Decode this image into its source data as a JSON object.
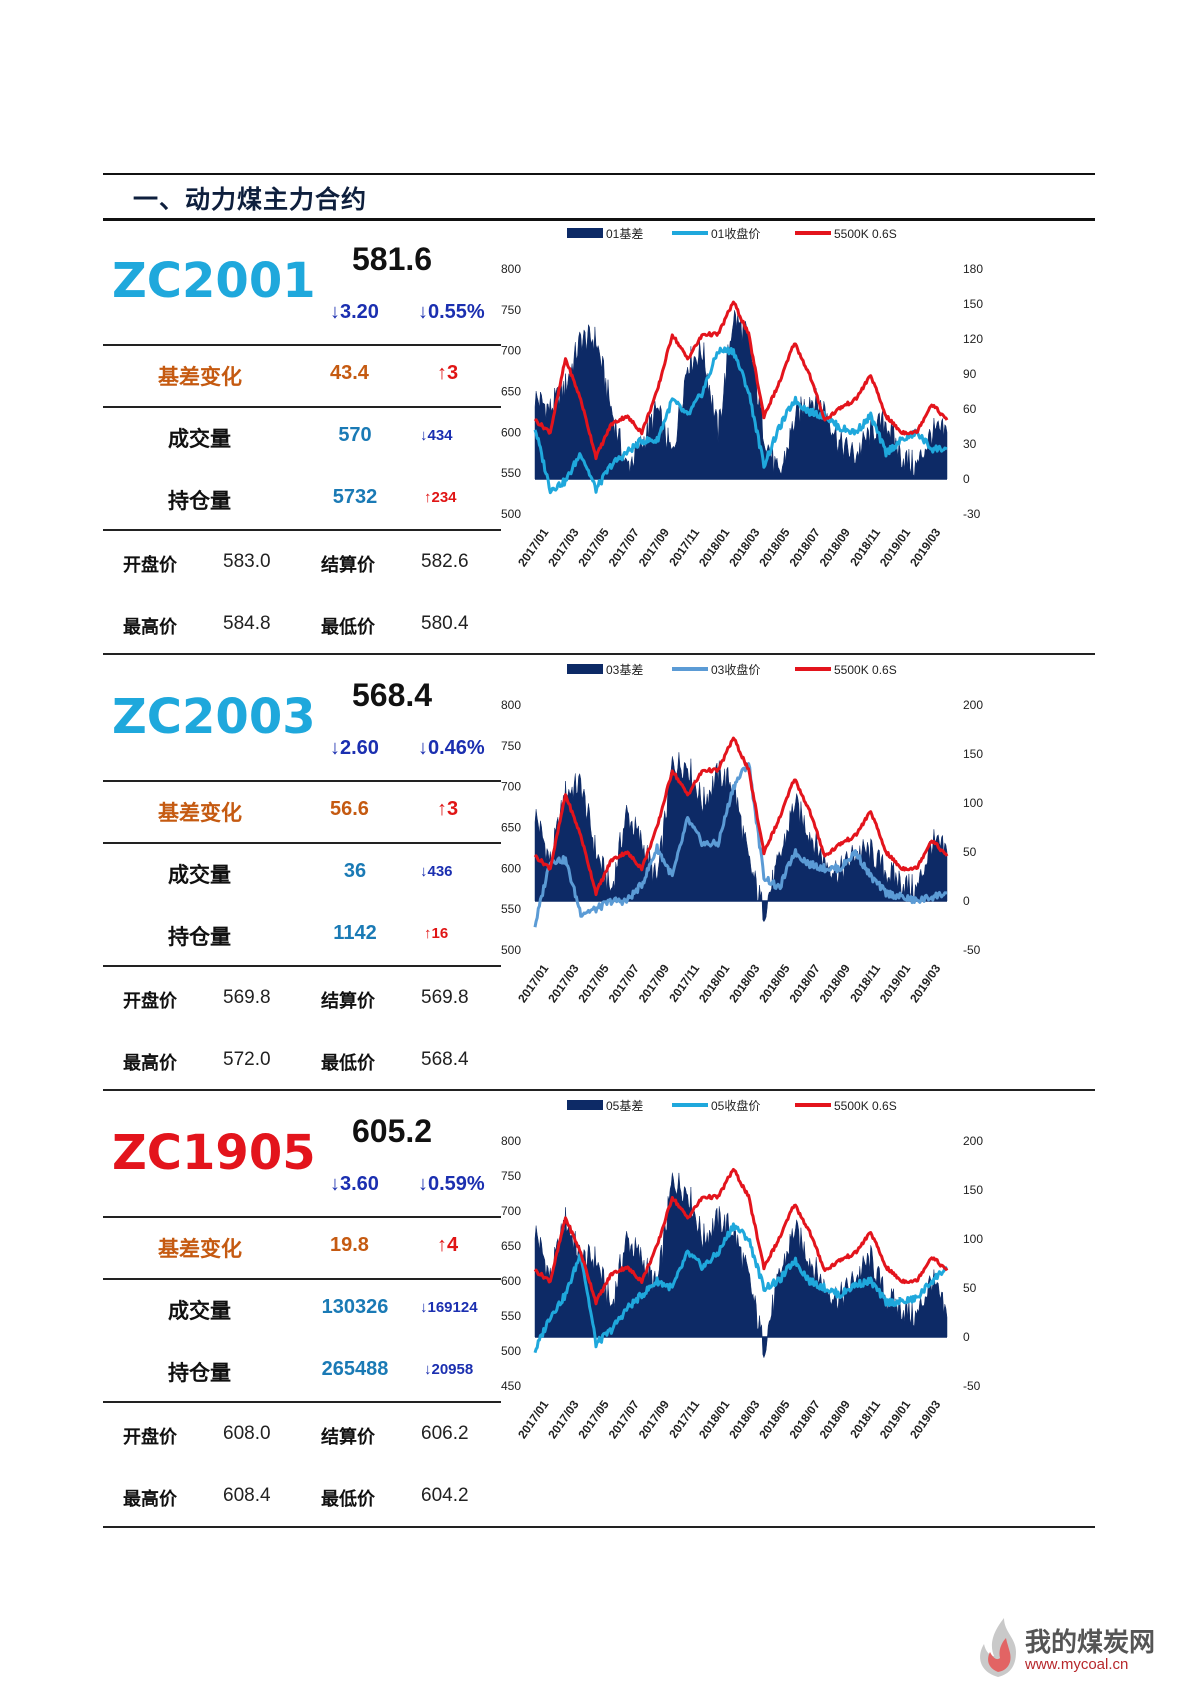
{
  "section_title": "一、动力煤主力合约",
  "colors": {
    "dark_navy": "#0d2a66",
    "light_blue": "#1fa8dc",
    "mid_blue": "#5b9bd5",
    "red": "#e3141c",
    "orange": "#c55a11",
    "code_blue": "#1fa8dc",
    "code_red": "#e3141c"
  },
  "watermark": {
    "name": "我的煤炭网",
    "url": "www.mycoal.cn",
    "icon": "flame-logo-icon"
  },
  "contracts": [
    {
      "code": "ZC2001",
      "code_color": "#1fa8dc",
      "price": "581.6",
      "change": "↓3.20",
      "change_pct": "↓0.55%",
      "basis_label": "基差变化",
      "basis_value": "43.4",
      "basis_change": "↑3",
      "volume_label": "成交量",
      "volume": "570",
      "volume_change": "↓434",
      "oi_label": "持仓量",
      "oi": "5732",
      "oi_change": "↑234",
      "open_label": "开盘价",
      "open": "583.0",
      "settle_label": "结算价",
      "settle": "582.6",
      "high_label": "最高价",
      "high": "584.8",
      "low_label": "最低价",
      "low": "580.4"
    },
    {
      "code": "ZC2003",
      "code_color": "#1fa8dc",
      "price": "568.4",
      "change": "↓2.60",
      "change_pct": "↓0.46%",
      "basis_label": "基差变化",
      "basis_value": "56.6",
      "basis_change": "↑3",
      "volume_label": "成交量",
      "volume": "36",
      "volume_change": "↓436",
      "oi_label": "持仓量",
      "oi": "1142",
      "oi_change": "↑16",
      "open_label": "开盘价",
      "open": "569.8",
      "settle_label": "结算价",
      "settle": "569.8",
      "high_label": "最高价",
      "high": "572.0",
      "low_label": "最低价",
      "low": "568.4"
    },
    {
      "code": "ZC1905",
      "code_color": "#e3141c",
      "price": "605.2",
      "change": "↓3.60",
      "change_pct": "↓0.59%",
      "basis_label": "基差变化",
      "basis_value": "19.8",
      "basis_change": "↑4",
      "volume_label": "成交量",
      "volume": "130326",
      "volume_change": "↓169124",
      "oi_label": "持仓量",
      "oi": "265488",
      "oi_change": "↓20958",
      "open_label": "开盘价",
      "open": "608.0",
      "settle_label": "结算价",
      "settle": "606.2",
      "high_label": "最高价",
      "high": "608.4",
      "low_label": "最低价",
      "low": "604.2"
    }
  ],
  "chart_data": [
    {
      "type": "line",
      "series": [
        {
          "name": "01基差",
          "kind": "area",
          "axis": "right",
          "color": "#0d2a66",
          "x": [
            "2017/01",
            "2017/02",
            "2017/03",
            "2017/04",
            "2017/05",
            "2017/06",
            "2017/07",
            "2017/08",
            "2017/09",
            "2017/10",
            "2017/11",
            "2017/12",
            "2018/01",
            "2018/02",
            "2018/03",
            "2018/04",
            "2018/05",
            "2018/06",
            "2018/07",
            "2018/08",
            "2018/09",
            "2018/10",
            "2018/11",
            "2018/12",
            "2019/01",
            "2019/02",
            "2019/03",
            "2019/04"
          ],
          "values": [
            70,
            60,
            80,
            120,
            120,
            60,
            10,
            30,
            60,
            20,
            100,
            110,
            40,
            140,
            120,
            40,
            0,
            50,
            70,
            60,
            30,
            20,
            40,
            50,
            20,
            10,
            40,
            40
          ]
        },
        {
          "name": "01收盘价",
          "kind": "line",
          "axis": "left",
          "color": "#1fa8dc",
          "x": [
            "2017/01",
            "2017/02",
            "2017/03",
            "2017/04",
            "2017/05",
            "2017/06",
            "2017/07",
            "2017/08",
            "2017/09",
            "2017/10",
            "2017/11",
            "2017/12",
            "2018/01",
            "2018/02",
            "2018/03",
            "2018/04",
            "2018/05",
            "2018/06",
            "2018/07",
            "2018/08",
            "2018/09",
            "2018/10",
            "2018/11",
            "2018/12",
            "2019/01",
            "2019/02",
            "2019/03",
            "2019/04"
          ],
          "values": [
            605,
            530,
            540,
            575,
            530,
            560,
            575,
            590,
            590,
            640,
            620,
            650,
            700,
            700,
            650,
            560,
            605,
            640,
            625,
            620,
            605,
            600,
            620,
            575,
            590,
            600,
            580,
            580
          ]
        },
        {
          "name": "5500K 0.6S",
          "kind": "line",
          "axis": "left",
          "color": "#e3141c",
          "x": [
            "2017/01",
            "2017/02",
            "2017/03",
            "2017/04",
            "2017/05",
            "2017/06",
            "2017/07",
            "2017/08",
            "2017/09",
            "2017/10",
            "2017/11",
            "2017/12",
            "2018/01",
            "2018/02",
            "2018/03",
            "2018/04",
            "2018/05",
            "2018/06",
            "2018/07",
            "2018/08",
            "2018/09",
            "2018/10",
            "2018/11",
            "2018/12",
            "2019/01",
            "2019/02",
            "2019/03",
            "2019/04"
          ],
          "values": [
            615,
            600,
            690,
            640,
            570,
            610,
            620,
            600,
            650,
            720,
            690,
            720,
            720,
            760,
            720,
            620,
            660,
            710,
            670,
            615,
            630,
            640,
            670,
            620,
            600,
            600,
            635,
            615
          ]
        }
      ],
      "ylim_left": [
        500,
        800
      ],
      "yticks_left": [
        500,
        550,
        600,
        650,
        700,
        750,
        800
      ],
      "ylim_right": [
        -30,
        180
      ],
      "yticks_right": [
        -30,
        0,
        30,
        60,
        90,
        120,
        150,
        180
      ],
      "xticks": [
        "2017/01",
        "2017/03",
        "2017/05",
        "2017/07",
        "2017/09",
        "2017/11",
        "2018/01",
        "2018/03",
        "2018/05",
        "2018/07",
        "2018/09",
        "2018/11",
        "2019/01",
        "2019/03"
      ],
      "legend": "top"
    },
    {
      "type": "line",
      "series": [
        {
          "name": "03基差",
          "kind": "area",
          "axis": "right",
          "color": "#0d2a66",
          "x": [
            "2017/01",
            "2017/02",
            "2017/03",
            "2017/04",
            "2017/05",
            "2017/06",
            "2017/07",
            "2017/08",
            "2017/09",
            "2017/10",
            "2017/11",
            "2017/12",
            "2018/01",
            "2018/02",
            "2018/03",
            "2018/04",
            "2018/05",
            "2018/06",
            "2018/07",
            "2018/08",
            "2018/09",
            "2018/10",
            "2018/11",
            "2018/12",
            "2019/01",
            "2019/02",
            "2019/03",
            "2019/04"
          ],
          "values": [
            90,
            40,
            110,
            120,
            50,
            10,
            90,
            60,
            20,
            140,
            140,
            100,
            130,
            120,
            40,
            -10,
            40,
            100,
            70,
            40,
            30,
            50,
            50,
            30,
            20,
            10,
            60,
            50
          ]
        },
        {
          "name": "03收盘价",
          "kind": "line",
          "axis": "left",
          "color": "#5b9bd5",
          "x": [
            "2017/01",
            "2017/02",
            "2017/03",
            "2017/04",
            "2017/05",
            "2017/06",
            "2017/07",
            "2017/08",
            "2017/09",
            "2017/10",
            "2017/11",
            "2017/12",
            "2018/01",
            "2018/02",
            "2018/03",
            "2018/04",
            "2018/05",
            "2018/06",
            "2018/07",
            "2018/08",
            "2018/09",
            "2018/10",
            "2018/11",
            "2018/12",
            "2019/01",
            "2019/02",
            "2019/03",
            "2019/04"
          ],
          "values": [
            530,
            610,
            610,
            545,
            550,
            560,
            560,
            580,
            625,
            590,
            660,
            630,
            630,
            700,
            730,
            590,
            575,
            620,
            605,
            600,
            600,
            620,
            590,
            570,
            565,
            560,
            565,
            570
          ]
        },
        {
          "name": "5500K 0.6S",
          "kind": "line",
          "axis": "left",
          "color": "#e3141c",
          "x": [
            "2017/01",
            "2017/02",
            "2017/03",
            "2017/04",
            "2017/05",
            "2017/06",
            "2017/07",
            "2017/08",
            "2017/09",
            "2017/10",
            "2017/11",
            "2017/12",
            "2018/01",
            "2018/02",
            "2018/03",
            "2018/04",
            "2018/05",
            "2018/06",
            "2018/07",
            "2018/08",
            "2018/09",
            "2018/10",
            "2018/11",
            "2018/12",
            "2019/01",
            "2019/02",
            "2019/03",
            "2019/04"
          ],
          "values": [
            615,
            600,
            690,
            640,
            570,
            610,
            620,
            600,
            650,
            720,
            690,
            720,
            720,
            760,
            720,
            620,
            660,
            710,
            670,
            615,
            630,
            640,
            670,
            620,
            600,
            600,
            635,
            615
          ]
        }
      ],
      "ylim_left": [
        500,
        800
      ],
      "yticks_left": [
        500,
        550,
        600,
        650,
        700,
        750,
        800
      ],
      "ylim_right": [
        -50,
        200
      ],
      "yticks_right": [
        -50,
        0,
        50,
        100,
        150,
        200
      ],
      "xticks": [
        "2017/01",
        "2017/03",
        "2017/05",
        "2017/07",
        "2017/09",
        "2017/11",
        "2018/01",
        "2018/03",
        "2018/05",
        "2018/07",
        "2018/09",
        "2018/11",
        "2019/01",
        "2019/03"
      ],
      "legend": "top"
    },
    {
      "type": "line",
      "series": [
        {
          "name": "05基差",
          "kind": "area",
          "axis": "right",
          "color": "#0d2a66",
          "x": [
            "2017/01",
            "2017/02",
            "2017/03",
            "2017/04",
            "2017/05",
            "2017/06",
            "2017/07",
            "2017/08",
            "2017/09",
            "2017/10",
            "2017/11",
            "2017/12",
            "2018/01",
            "2018/02",
            "2018/03",
            "2018/04",
            "2018/05",
            "2018/06",
            "2018/07",
            "2018/08",
            "2018/09",
            "2018/10",
            "2018/11",
            "2018/12",
            "2019/01",
            "2019/02",
            "2019/03",
            "2019/04"
          ],
          "values": [
            110,
            60,
            120,
            80,
            80,
            30,
            100,
            80,
            50,
            160,
            150,
            100,
            120,
            110,
            60,
            -10,
            60,
            110,
            80,
            50,
            40,
            60,
            80,
            40,
            30,
            20,
            60,
            20
          ]
        },
        {
          "name": "05收盘价",
          "kind": "line",
          "axis": "left",
          "color": "#1fa8dc",
          "x": [
            "2017/01",
            "2017/02",
            "2017/03",
            "2017/04",
            "2017/05",
            "2017/06",
            "2017/07",
            "2017/08",
            "2017/09",
            "2017/10",
            "2017/11",
            "2017/12",
            "2018/01",
            "2018/02",
            "2018/03",
            "2018/04",
            "2018/05",
            "2018/06",
            "2018/07",
            "2018/08",
            "2018/09",
            "2018/10",
            "2018/11",
            "2018/12",
            "2019/01",
            "2019/02",
            "2019/03",
            "2019/04"
          ],
          "values": [
            500,
            550,
            580,
            640,
            510,
            530,
            560,
            580,
            600,
            590,
            640,
            620,
            640,
            680,
            660,
            590,
            600,
            630,
            600,
            590,
            580,
            595,
            600,
            570,
            570,
            575,
            600,
            620
          ]
        },
        {
          "name": "5500K 0.6S",
          "kind": "line",
          "axis": "left",
          "color": "#e3141c",
          "x": [
            "2017/01",
            "2017/02",
            "2017/03",
            "2017/04",
            "2017/05",
            "2017/06",
            "2017/07",
            "2017/08",
            "2017/09",
            "2017/10",
            "2017/11",
            "2017/12",
            "2018/01",
            "2018/02",
            "2018/03",
            "2018/04",
            "2018/05",
            "2018/06",
            "2018/07",
            "2018/08",
            "2018/09",
            "2018/10",
            "2018/11",
            "2018/12",
            "2019/01",
            "2019/02",
            "2019/03",
            "2019/04"
          ],
          "values": [
            615,
            600,
            690,
            640,
            570,
            610,
            620,
            600,
            650,
            720,
            690,
            720,
            720,
            760,
            720,
            620,
            660,
            710,
            670,
            615,
            630,
            640,
            670,
            620,
            600,
            600,
            635,
            615
          ]
        }
      ],
      "ylim_left": [
        450,
        800
      ],
      "yticks_left": [
        450,
        500,
        550,
        600,
        650,
        700,
        750,
        800
      ],
      "ylim_right": [
        -50,
        200
      ],
      "yticks_right": [
        -50,
        0,
        50,
        100,
        150,
        200
      ],
      "xticks": [
        "2017/01",
        "2017/03",
        "2017/05",
        "2017/07",
        "2017/09",
        "2017/11",
        "2018/01",
        "2018/03",
        "2018/05",
        "2018/07",
        "2018/09",
        "2018/11",
        "2019/01",
        "2019/03"
      ],
      "legend": "top"
    }
  ]
}
